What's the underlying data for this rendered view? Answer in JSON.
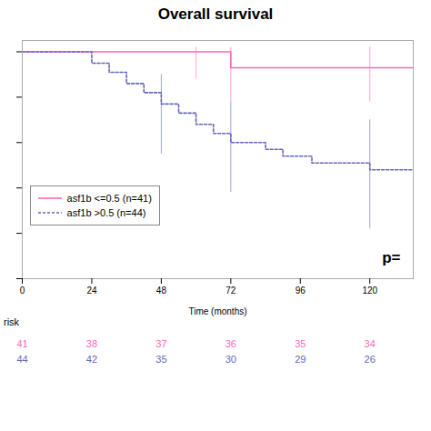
{
  "chart_data": {
    "type": "step",
    "title": "Overall survival",
    "xlabel": "Time (months)",
    "xlim": [
      0,
      135
    ],
    "ylim": [
      0.0,
      1.05
    ],
    "xticks": [
      0,
      24,
      48,
      72,
      96,
      120
    ],
    "yticks": [
      0.0,
      0.2,
      0.4,
      0.6,
      0.8,
      1.0
    ],
    "tick_labels": "x",
    "grid": false,
    "legend": "lower left",
    "series": [
      {
        "name": "asf1b <=0.5 (n=41)",
        "color": "#ff69b4",
        "line_style": "solid",
        "x": [
          0,
          60,
          72,
          135
        ],
        "values": [
          1.0,
          1.0,
          0.93,
          0.93
        ],
        "ci_x": [
          60,
          72,
          120
        ],
        "ci_low": [
          0.88,
          0.78,
          0.78
        ],
        "ci_high": [
          1.02,
          1.02,
          1.02
        ],
        "risk": [
          41,
          38,
          37,
          36,
          35,
          34
        ]
      },
      {
        "name": "asf1b >0.5 (n=44)",
        "color": "#6666bb",
        "line_style": "dashed",
        "x": [
          0,
          24,
          30,
          36,
          42,
          48,
          54,
          60,
          66,
          72,
          84,
          90,
          100,
          120,
          135
        ],
        "values": [
          1.0,
          0.95,
          0.91,
          0.86,
          0.82,
          0.77,
          0.73,
          0.68,
          0.64,
          0.6,
          0.57,
          0.54,
          0.51,
          0.48,
          0.48
        ],
        "ci_x": [
          48,
          72,
          120
        ],
        "ci_low": [
          0.55,
          0.38,
          0.22
        ],
        "ci_high": [
          0.9,
          0.78,
          0.7
        ],
        "risk": [
          44,
          42,
          35,
          30,
          29,
          26
        ]
      }
    ],
    "risk_x": [
      0,
      24,
      48,
      72,
      96,
      120
    ],
    "risk_label": "risk",
    "annotations": [
      {
        "text": "p="
      }
    ]
  }
}
